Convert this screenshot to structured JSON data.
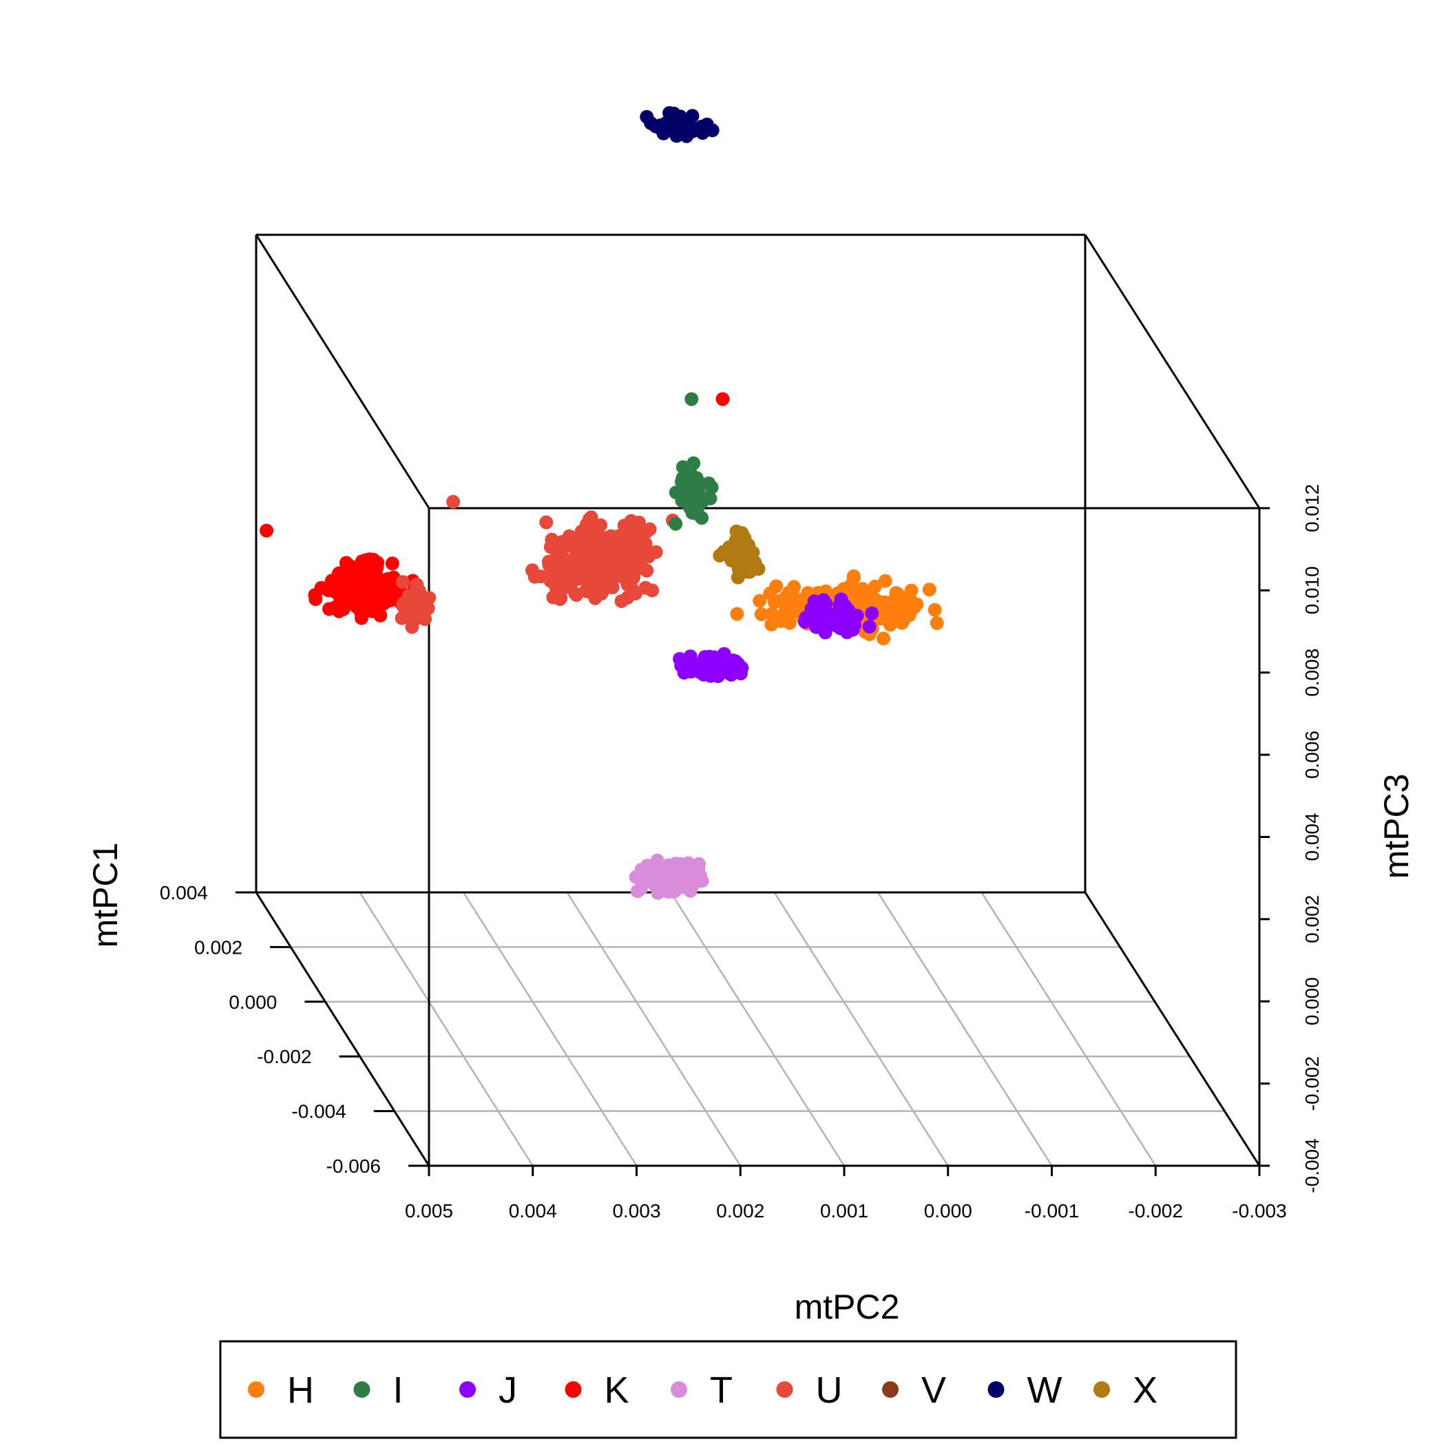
{
  "chart_data": {
    "type": "scatter",
    "projection": "3d",
    "axes": {
      "x": {
        "label": "mtPC2",
        "range": [
          0.005,
          -0.003
        ],
        "ticks": [
          "0.005",
          "0.004",
          "0.003",
          "0.002",
          "0.001",
          "0.000",
          "-0.001",
          "-0.002",
          "-0.003"
        ]
      },
      "y": {
        "label": "mtPC1",
        "range": [
          -0.006,
          0.004
        ],
        "ticks": [
          "-0.006",
          "-0.004",
          "-0.002",
          "0.000",
          "0.002",
          "0.004"
        ]
      },
      "z": {
        "label": "mtPC3",
        "range": [
          -0.004,
          0.012
        ],
        "ticks": [
          "-0.004",
          "-0.002",
          "0.000",
          "0.002",
          "0.004",
          "0.006",
          "0.008",
          "0.010",
          "0.012"
        ]
      }
    },
    "grid": "floor",
    "legend": {
      "placement": "bottom",
      "entries": [
        {
          "label": "H",
          "color": "#FF7F0E"
        },
        {
          "label": "I",
          "color": "#2E7D46"
        },
        {
          "label": "J",
          "color": "#8B00FF"
        },
        {
          "label": "K",
          "color": "#FF0000"
        },
        {
          "label": "T",
          "color": "#D98CD9"
        },
        {
          "label": "U",
          "color": "#E8483A"
        },
        {
          "label": "V",
          "color": "#8B3A1E"
        },
        {
          "label": "W",
          "color": "#000066"
        },
        {
          "label": "X",
          "color": "#B07A10"
        }
      ]
    },
    "clusters": [
      {
        "group": "K",
        "pc2": [
          0.0049,
          0.0036
        ],
        "pc1": [
          0.0016,
          0.0028
        ],
        "pc3": [
          0.0037,
          0.0055
        ],
        "n": 190
      },
      {
        "group": "U",
        "pc2": [
          0.004,
          0.0035
        ],
        "pc1": [
          0.0016,
          0.0028
        ],
        "pc3": [
          0.0033,
          0.0049
        ],
        "n": 35
      },
      {
        "group": "U",
        "pc2": [
          0.003,
          0.001
        ],
        "pc1": [
          0.0016,
          0.0028
        ],
        "pc3": [
          0.0038,
          0.0068
        ],
        "n": 230
      },
      {
        "group": "I",
        "pc2": [
          0.0014,
          0.0008
        ],
        "pc1": [
          0.0017,
          0.0027
        ],
        "pc3": [
          0.0061,
          0.0079
        ],
        "n": 70
      },
      {
        "group": "X",
        "pc2": [
          0.0009,
          0.0004
        ],
        "pc1": [
          0.0017,
          0.0027
        ],
        "pc3": [
          0.0046,
          0.0063
        ],
        "n": 40
      },
      {
        "group": "H",
        "pc2": [
          0.0009,
          -0.0016
        ],
        "pc1": [
          0.0016,
          0.0028
        ],
        "pc3": [
          0.0032,
          0.005
        ],
        "n": 230
      },
      {
        "group": "J",
        "pc2": [
          0.0003,
          -0.0009
        ],
        "pc1": [
          0.0016,
          0.0028
        ],
        "pc3": [
          0.0033,
          0.0046
        ],
        "n": 50
      },
      {
        "group": "J",
        "pc2": [
          0.0015,
          0.0004
        ],
        "pc1": [
          0.0016,
          0.0024
        ],
        "pc3": [
          0.0024,
          0.0032
        ],
        "n": 80
      },
      {
        "group": "T",
        "pc2": [
          0.0023,
          0.0013
        ],
        "pc1": [
          -0.0012,
          -0.0004
        ],
        "pc3": [
          -0.0011,
          0.0003
        ],
        "n": 90
      },
      {
        "group": "W",
        "pc2": [
          0.0015,
          0.0007
        ],
        "pc1": [
          0.0028,
          0.0032
        ],
        "pc3": [
          0.0148,
          0.0158
        ],
        "n": 40
      }
    ],
    "outliers": [
      {
        "group": "I",
        "pc2": 0.0011,
        "pc1": 0.0022,
        "pc3": 0.0092
      },
      {
        "group": "K",
        "pc2": 0.0008,
        "pc1": 0.0022,
        "pc3": 0.0092
      },
      {
        "group": "K",
        "pc2": 0.0052,
        "pc1": 0.0022,
        "pc3": 0.006
      },
      {
        "group": "U",
        "pc2": 0.0034,
        "pc1": 0.0022,
        "pc3": 0.0067
      }
    ]
  }
}
